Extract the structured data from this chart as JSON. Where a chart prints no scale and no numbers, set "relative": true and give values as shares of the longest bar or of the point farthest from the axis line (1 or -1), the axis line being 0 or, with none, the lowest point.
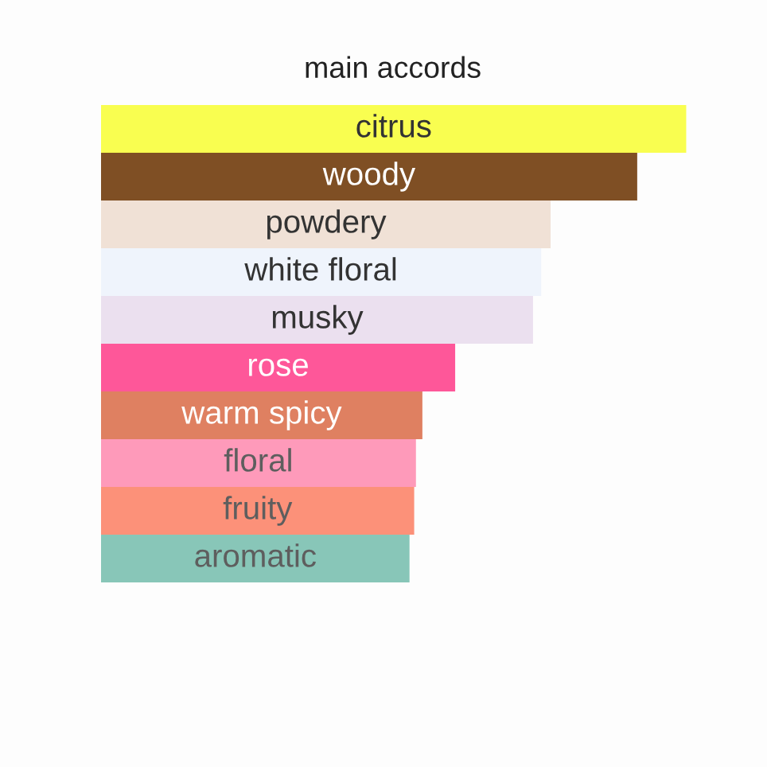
{
  "chart_data": {
    "type": "bar",
    "title": "main accords",
    "orientation": "horizontal",
    "relative": true,
    "categories": [
      "citrus",
      "woody",
      "powdery",
      "white floral",
      "musky",
      "rose",
      "warm spicy",
      "floral",
      "fruity",
      "aromatic"
    ],
    "values": [
      1,
      0.916,
      0.768,
      0.752,
      0.738,
      0.605,
      0.549,
      0.538,
      0.535,
      0.527
    ],
    "colors": [
      "#f9fe50",
      "#7f4f24",
      "#f0e1d6",
      "#eff4fc",
      "#ebe0ef",
      "#fe5799",
      "#df8061",
      "#fe9aba",
      "#fc9179",
      "#88c6b8"
    ]
  }
}
